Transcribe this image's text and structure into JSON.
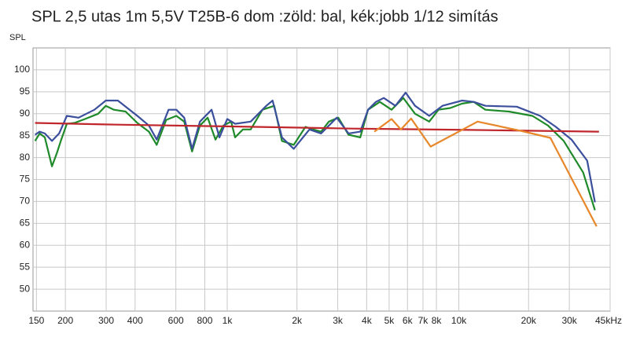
{
  "chart_data": {
    "type": "line",
    "title": "SPL 2,5 utas 1m 5,5V T25B-6 dom :zöld: bal, kék:jobb 1/12 simítás",
    "y_label": "SPL",
    "xscale": "log",
    "xlim": [
      145,
      45000
    ],
    "ylim": [
      45,
      105
    ],
    "xticks": [
      150,
      200,
      300,
      400,
      600,
      800,
      {
        "value": 1000,
        "label": "1k"
      },
      {
        "value": 2000,
        "label": "2k"
      },
      {
        "value": 3000,
        "label": "3k"
      },
      {
        "value": 4000,
        "label": "4k"
      },
      {
        "value": 5000,
        "label": "5k"
      },
      {
        "value": 6000,
        "label": "6k"
      },
      {
        "value": 7000,
        "label": "7k"
      },
      {
        "value": 8000,
        "label": "8k"
      },
      {
        "value": 10000,
        "label": "10k"
      },
      {
        "value": 20000,
        "label": "20k"
      },
      {
        "value": 30000,
        "label": "30k"
      },
      {
        "value": 45000,
        "label": "45kHz"
      }
    ],
    "yticks": [
      50,
      55,
      60,
      65,
      70,
      75,
      80,
      85,
      90,
      95,
      100
    ],
    "grid": true,
    "series": [
      {
        "color": "#1f8a2a",
        "x": [
          148,
          155,
          163,
          175,
          184,
          192,
          203,
          219,
          243,
          277,
          299,
          324,
          364,
          409,
          459,
          496,
          545,
          603,
          652,
          705,
          762,
          823,
          890,
          962,
          1040,
          1081,
          1168,
          1262,
          1419,
          1595,
          1723,
          1937,
          2177,
          2353,
          2543,
          2748,
          3018,
          3340,
          3753,
          4055,
          4560,
          5120,
          5754,
          6471,
          7447,
          8166,
          9183,
          10330,
          11590,
          13030,
          16440,
          20790,
          24270,
          28380,
          34420,
          38710
        ],
        "values": [
          83.8,
          85.5,
          84.6,
          78,
          81.1,
          84.1,
          87.7,
          87.9,
          88.8,
          90,
          91.8,
          90.9,
          90.5,
          87.9,
          85.9,
          82.9,
          88.6,
          89.5,
          88.2,
          81.4,
          87.3,
          89.1,
          84.1,
          87.3,
          88.2,
          84.6,
          86.4,
          86.4,
          90.9,
          91.8,
          83.8,
          82.9,
          87,
          86.4,
          85.9,
          88.2,
          89.1,
          85.2,
          84.6,
          90.9,
          92.7,
          90.9,
          93.6,
          90,
          88.2,
          90.9,
          91.3,
          92.3,
          92.7,
          90.9,
          90.5,
          89.5,
          87.3,
          83.8,
          76.6,
          68
        ]
      },
      {
        "color": "#3b4f9c",
        "x": [
          148,
          155,
          163,
          175,
          188,
          203,
          228,
          267,
          299,
          337,
          409,
          459,
          496,
          558,
          603,
          652,
          705,
          762,
          856,
          925,
          1000,
          1081,
          1262,
          1475,
          1570,
          1723,
          1937,
          2264,
          2543,
          2970,
          3340,
          3753,
          4055,
          4385,
          4739,
          5322,
          5890,
          6471,
          7447,
          8492,
          10330,
          11590,
          13030,
          17780,
          22450,
          26240,
          30650,
          35810,
          38710
        ],
        "values": [
          85.2,
          85.9,
          85.5,
          83.8,
          85.5,
          89.5,
          89.1,
          90.9,
          93,
          93,
          89.5,
          87.3,
          84.1,
          90.9,
          90.9,
          89.1,
          82,
          88.2,
          90.9,
          84.6,
          88.8,
          87.7,
          88.2,
          91.8,
          93,
          84.6,
          82,
          86.4,
          85.5,
          89.1,
          85.5,
          85.9,
          90.9,
          92.7,
          93.6,
          91.8,
          94.8,
          91.8,
          89.5,
          91.8,
          93,
          92.7,
          91.8,
          91.6,
          89.5,
          87,
          84.1,
          79.3,
          69.8
        ]
      },
      {
        "color": "#c0272d",
        "x": [
          148,
          337,
          1000,
          3473,
          11150,
          40270
        ],
        "values": [
          87.9,
          87.5,
          87.1,
          86.6,
          86.3,
          85.9
        ]
      },
      {
        "color": "#e8872a",
        "x": [
          4316,
          5120,
          5623,
          6221,
          7551,
          12050,
          18490,
          24840,
          39350
        ],
        "values": [
          85.9,
          88.8,
          86.4,
          88.9,
          82.5,
          88.2,
          86.1,
          84.5,
          64.3
        ]
      }
    ]
  }
}
